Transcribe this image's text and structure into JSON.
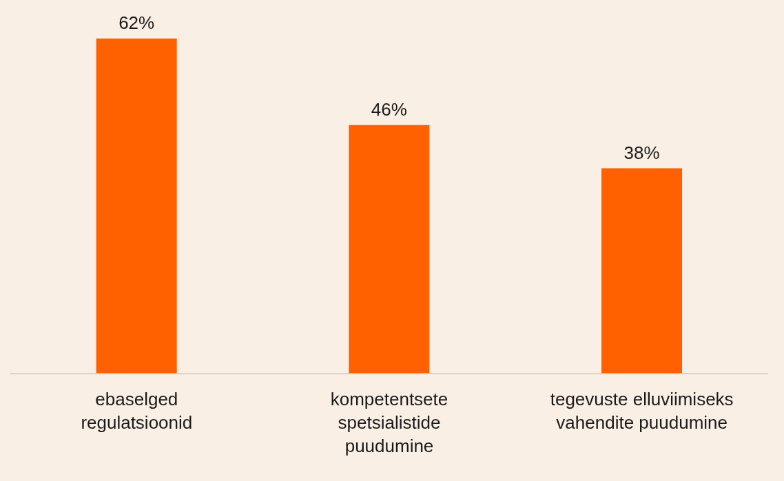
{
  "chart_data": {
    "type": "bar",
    "categories": [
      "ebaselged regulatsioonid",
      "kompetentsete spetsialistide puudumine",
      "tegevuste elluviimiseks vahendite puudumine"
    ],
    "values": [
      62,
      46,
      38
    ],
    "value_labels": [
      "62%",
      "46%",
      "38%"
    ],
    "color": "#ff6000",
    "grid": false,
    "legend": false
  }
}
